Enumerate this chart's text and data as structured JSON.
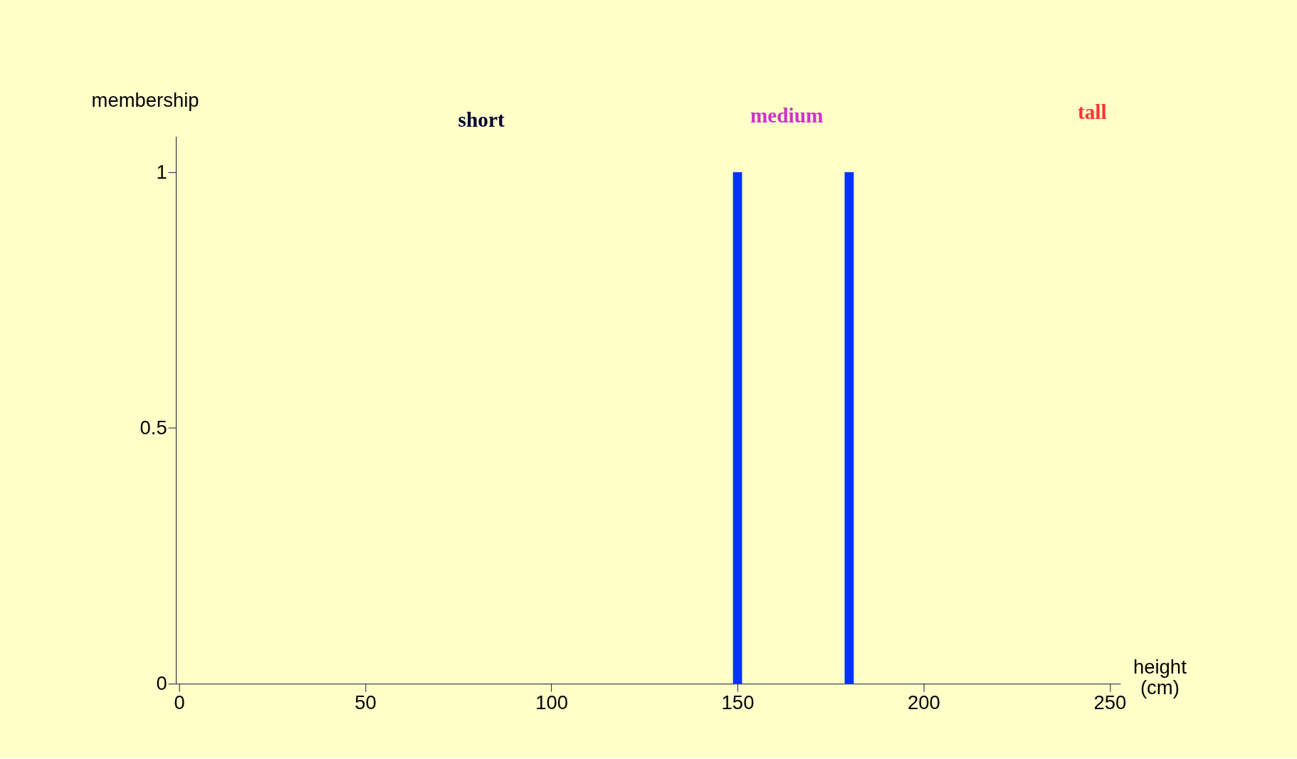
{
  "chart_data": {
    "type": "bar",
    "xlabel": "height (cm)",
    "ylabel": "membership",
    "series": [
      {
        "color": "#0033ff",
        "x": [
          150,
          180
        ],
        "values": [
          1,
          1
        ]
      }
    ],
    "xlim": [
      0,
      252
    ],
    "xticks": [
      0,
      50,
      100,
      150,
      200,
      250
    ],
    "ylim": [
      0,
      1.07
    ],
    "yticks": [
      0,
      0.5,
      1
    ],
    "grid": false,
    "annotations": [
      "short",
      "medium",
      "tall"
    ]
  }
}
